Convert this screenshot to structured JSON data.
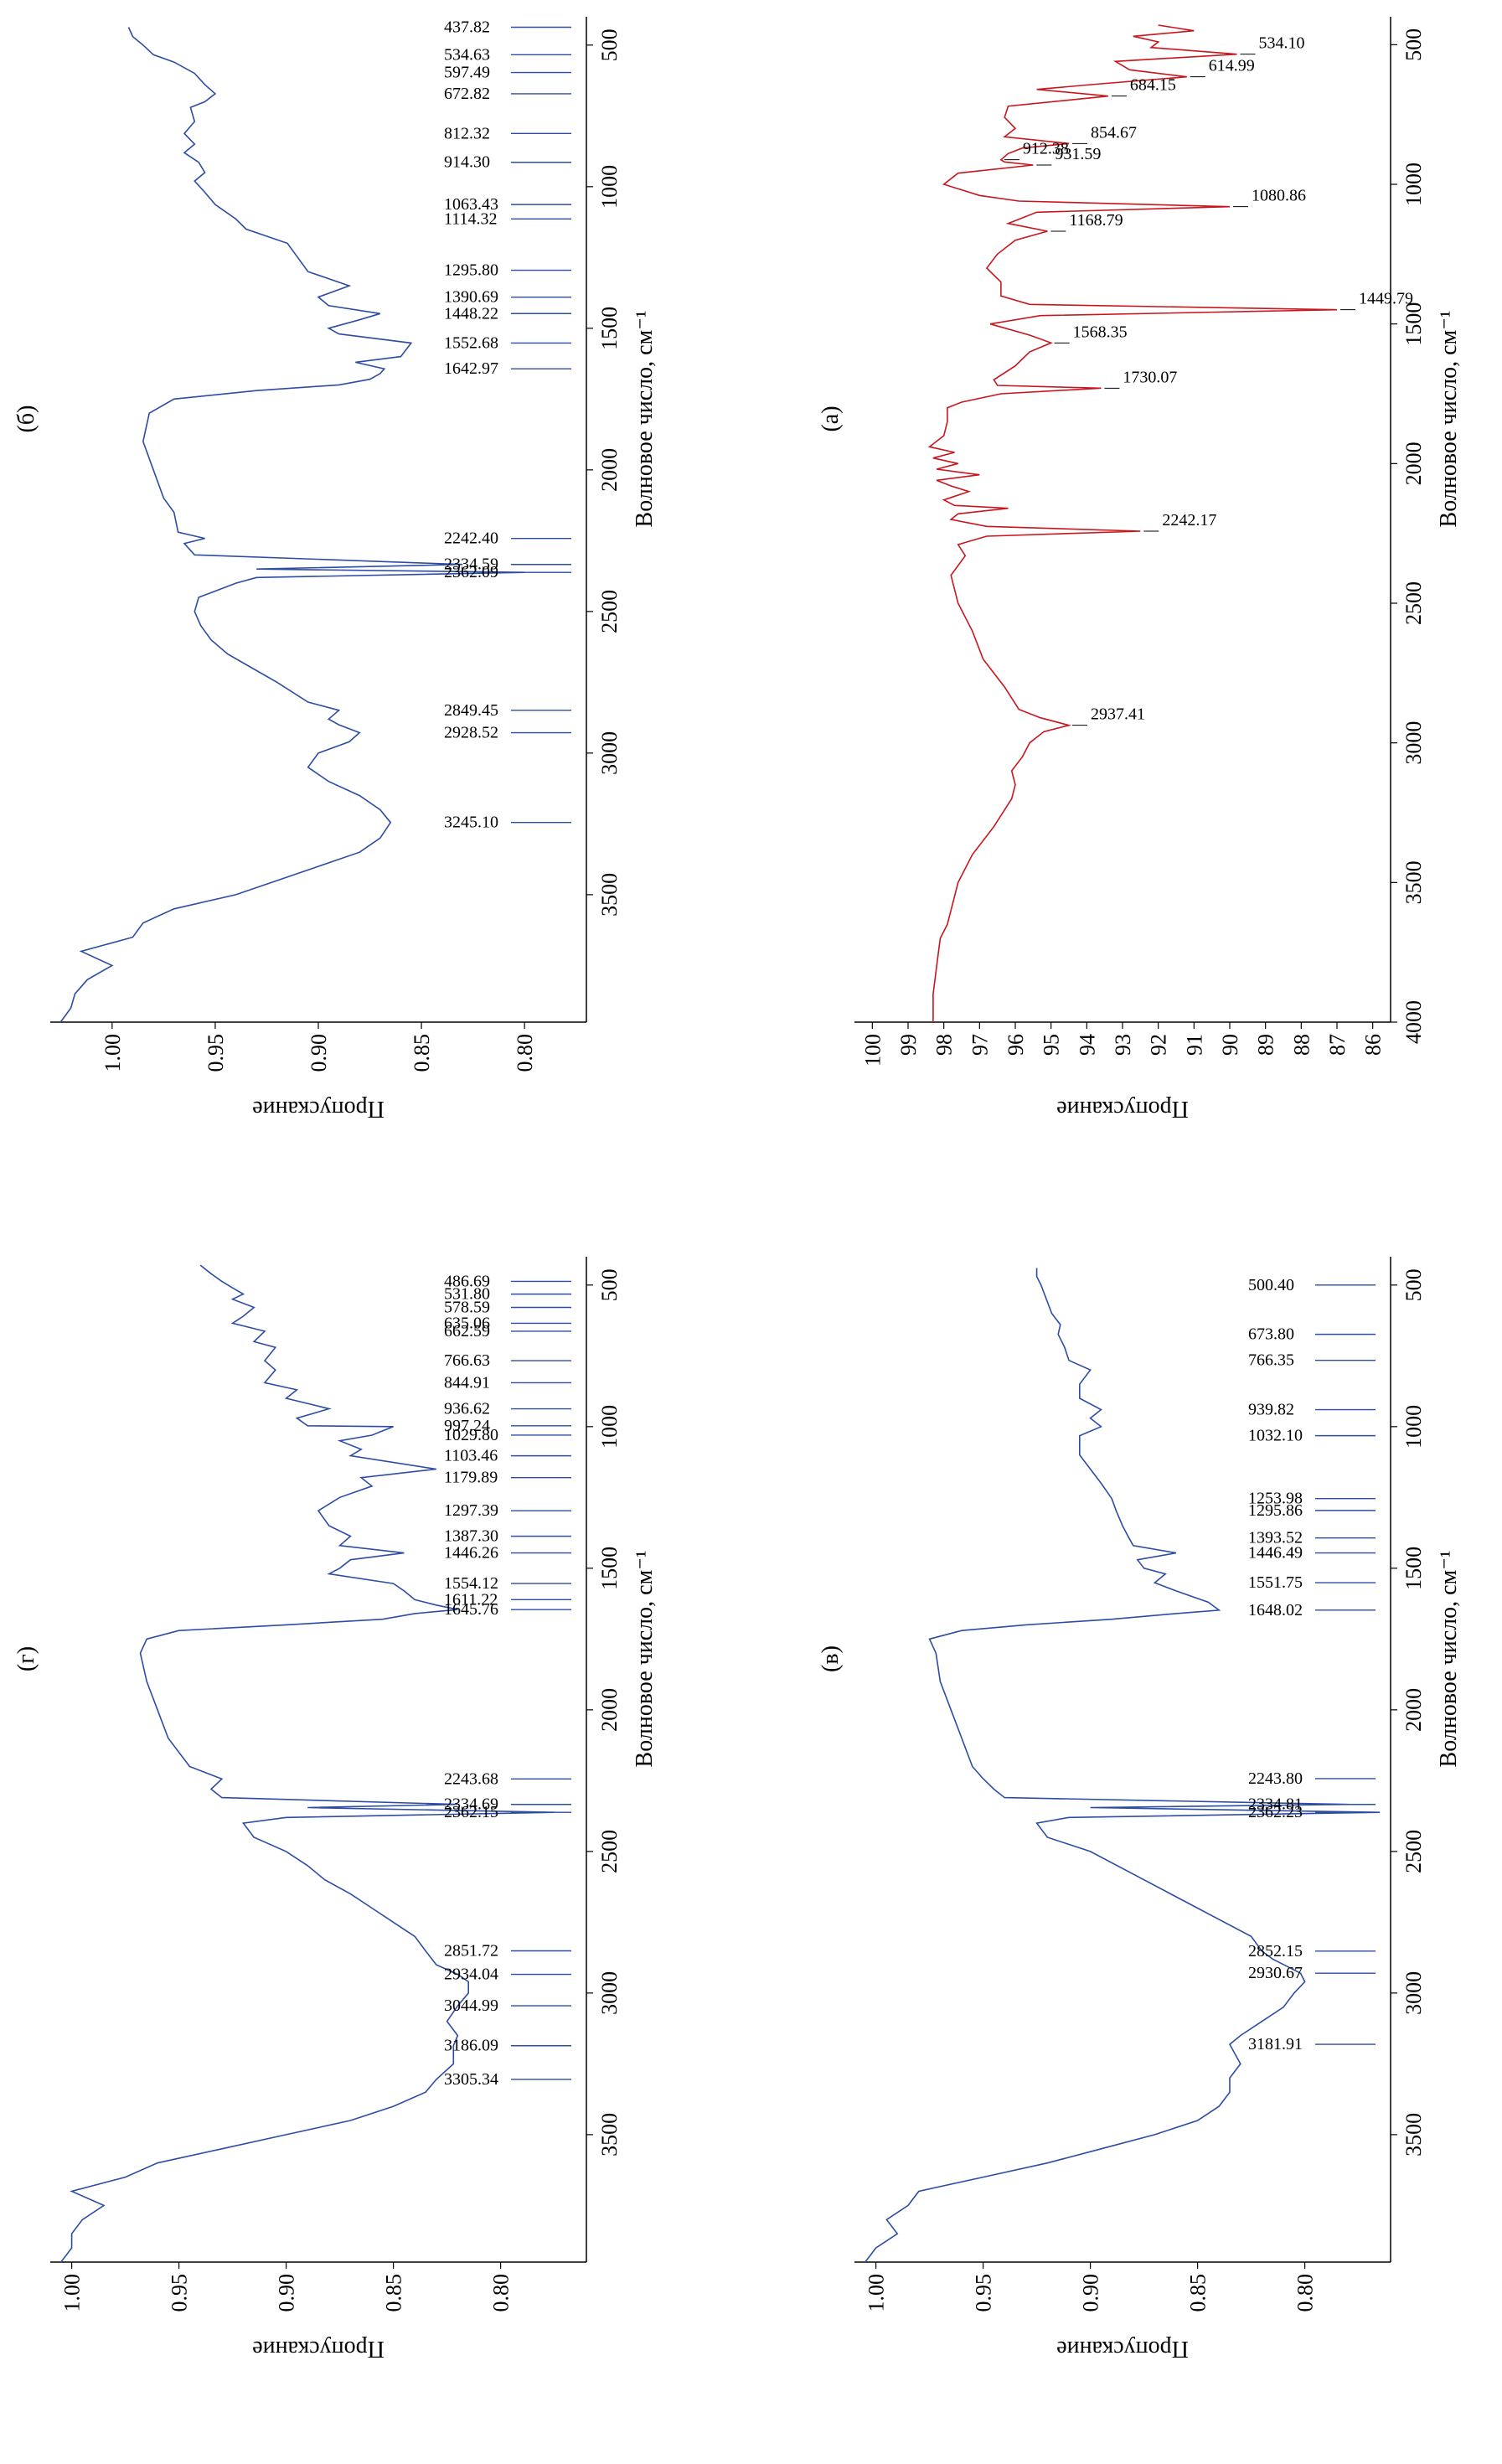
{
  "chart_data": [
    {
      "id": "a",
      "type": "line",
      "panel_label": "(а)",
      "xlabel": "Волновое число, см⁻¹",
      "ylabel": "Пропускание",
      "xlim": [
        4000,
        400
      ],
      "ylim": [
        85.5,
        100.5
      ],
      "x_ticks": [
        4000,
        3500,
        3000,
        2500,
        2000,
        1500,
        1000,
        500
      ],
      "y_ticks": [
        86,
        87,
        88,
        89,
        90,
        91,
        92,
        93,
        94,
        95,
        96,
        97,
        98,
        99,
        100
      ],
      "y_tick_labels": [
        "86",
        "87",
        "88",
        "89",
        "90",
        "91",
        "92",
        "93",
        "94",
        "95",
        "96",
        "97",
        "98",
        "99",
        "100"
      ],
      "color": "#c8161d",
      "x": [
        4000,
        3900,
        3800,
        3700,
        3650,
        3600,
        3500,
        3400,
        3300,
        3200,
        3150,
        3100,
        3050,
        3000,
        2960,
        2937,
        2910,
        2880,
        2800,
        2700,
        2600,
        2500,
        2400,
        2330,
        2290,
        2260,
        2242,
        2225,
        2200,
        2180,
        2160,
        2150,
        2130,
        2100,
        2080,
        2060,
        2040,
        2020,
        2000,
        1980,
        1960,
        1940,
        1900,
        1850,
        1800,
        1780,
        1750,
        1730,
        1720,
        1700,
        1650,
        1600,
        1568,
        1540,
        1500,
        1470,
        1449,
        1430,
        1400,
        1350,
        1300,
        1250,
        1200,
        1168,
        1140,
        1100,
        1080,
        1060,
        1040,
        1000,
        960,
        931,
        920,
        912,
        890,
        870,
        854,
        830,
        800,
        760,
        720,
        684,
        660,
        640,
        615,
        590,
        560,
        534,
        510,
        490,
        470,
        450,
        430
      ],
      "y": [
        98.3,
        98.3,
        98.2,
        98.1,
        97.9,
        97.8,
        97.6,
        97.2,
        96.6,
        96.1,
        96.0,
        96.1,
        95.8,
        95.6,
        95.2,
        94.5,
        95.3,
        95.9,
        96.3,
        96.9,
        97.2,
        97.6,
        97.8,
        97.4,
        97.6,
        96.8,
        92.5,
        96.8,
        97.8,
        97.6,
        96.2,
        97.7,
        98.0,
        97.3,
        97.8,
        98.2,
        97.0,
        98.2,
        97.6,
        98.3,
        97.7,
        98.4,
        98.0,
        97.9,
        97.9,
        97.5,
        96.4,
        93.6,
        96.5,
        96.6,
        96.0,
        95.6,
        95.0,
        95.6,
        96.7,
        95.3,
        87.0,
        95.6,
        96.4,
        96.4,
        96.8,
        96.5,
        96.0,
        95.1,
        96.2,
        95.4,
        90.0,
        95.9,
        97.0,
        98.0,
        97.6,
        95.5,
        96.3,
        96.4,
        96.2,
        95.8,
        94.5,
        96.3,
        96.0,
        96.3,
        96.2,
        93.4,
        95.4,
        93.6,
        91.2,
        92.8,
        93.2,
        89.8,
        92.2,
        92.0,
        92.7,
        91.0,
        92.0
      ],
      "peaks": [
        {
          "x": 2937,
          "label": "2937.41"
        },
        {
          "x": 2242,
          "label": "2242.17"
        },
        {
          "x": 1730,
          "label": "1730.07"
        },
        {
          "x": 1568,
          "label": "1568.35"
        },
        {
          "x": 1449,
          "label": "1449.79"
        },
        {
          "x": 1168,
          "label": "1168.79"
        },
        {
          "x": 1080,
          "label": "1080.86"
        },
        {
          "x": 931,
          "label": "931.59"
        },
        {
          "x": 912,
          "label": "912.38"
        },
        {
          "x": 854,
          "label": "854.67"
        },
        {
          "x": 684,
          "label": "684.15"
        },
        {
          "x": 615,
          "label": "614.99"
        },
        {
          "x": 534,
          "label": "534.10"
        }
      ]
    },
    {
      "id": "b",
      "type": "line",
      "panel_label": "(б)",
      "xlabel": "Волновое число, см⁻¹",
      "ylabel": "Пропускание",
      "xlim": [
        3950,
        400
      ],
      "ylim": [
        0.77,
        1.03
      ],
      "x_ticks": [
        3500,
        3000,
        2500,
        2000,
        1500,
        1000,
        500
      ],
      "y_ticks": [
        0.8,
        0.85,
        0.9,
        0.95,
        1.0
      ],
      "y_tick_labels": [
        "0.80",
        "0.85",
        "0.90",
        "0.95",
        "1.00"
      ],
      "color": "#2d4ca4",
      "x": [
        3950,
        3900,
        3850,
        3800,
        3750,
        3700,
        3650,
        3600,
        3550,
        3500,
        3450,
        3400,
        3350,
        3300,
        3245,
        3200,
        3150,
        3100,
        3050,
        3000,
        2960,
        2928,
        2900,
        2880,
        2849,
        2820,
        2750,
        2700,
        2650,
        2600,
        2550,
        2500,
        2450,
        2400,
        2380,
        2362,
        2350,
        2334,
        2300,
        2260,
        2242,
        2220,
        2150,
        2100,
        2000,
        1900,
        1800,
        1750,
        1720,
        1700,
        1680,
        1660,
        1643,
        1620,
        1600,
        1552,
        1520,
        1500,
        1470,
        1448,
        1420,
        1390,
        1350,
        1300,
        1250,
        1200,
        1150,
        1114,
        1063,
        1020,
        980,
        950,
        914,
        880,
        850,
        812,
        770,
        720,
        700,
        672,
        640,
        600,
        560,
        534,
        500,
        470,
        437
      ],
      "y": [
        1.025,
        1.02,
        1.018,
        1.012,
        1.0,
        1.015,
        0.99,
        0.985,
        0.97,
        0.94,
        0.92,
        0.9,
        0.88,
        0.87,
        0.865,
        0.87,
        0.88,
        0.895,
        0.905,
        0.9,
        0.885,
        0.88,
        0.89,
        0.895,
        0.89,
        0.905,
        0.92,
        0.932,
        0.944,
        0.952,
        0.957,
        0.96,
        0.958,
        0.94,
        0.93,
        0.8,
        0.93,
        0.83,
        0.96,
        0.965,
        0.955,
        0.968,
        0.97,
        0.975,
        0.98,
        0.985,
        0.982,
        0.97,
        0.93,
        0.89,
        0.875,
        0.87,
        0.868,
        0.882,
        0.86,
        0.855,
        0.89,
        0.895,
        0.88,
        0.87,
        0.895,
        0.9,
        0.885,
        0.905,
        0.91,
        0.915,
        0.935,
        0.94,
        0.95,
        0.955,
        0.96,
        0.955,
        0.958,
        0.965,
        0.96,
        0.965,
        0.96,
        0.962,
        0.955,
        0.95,
        0.955,
        0.96,
        0.97,
        0.98,
        0.985,
        0.99,
        0.992
      ],
      "peaks": [
        {
          "x": 3245,
          "label": "3245.10"
        },
        {
          "x": 2928,
          "label": "2928.52"
        },
        {
          "x": 2849,
          "label": "2849.45"
        },
        {
          "x": 2362,
          "label": "2362.09"
        },
        {
          "x": 2334,
          "label": "2334.59"
        },
        {
          "x": 2242,
          "label": "2242.40"
        },
        {
          "x": 1643,
          "label": "1642.97"
        },
        {
          "x": 1552,
          "label": "1552.68"
        },
        {
          "x": 1448,
          "label": "1448.22"
        },
        {
          "x": 1390,
          "label": "1390.69"
        },
        {
          "x": 1295,
          "label": "1295.80"
        },
        {
          "x": 1114,
          "label": "1114.32"
        },
        {
          "x": 1063,
          "label": "1063.43"
        },
        {
          "x": 914,
          "label": "914.30"
        },
        {
          "x": 812,
          "label": "812.32"
        },
        {
          "x": 672,
          "label": "672.82"
        },
        {
          "x": 597,
          "label": "597.49"
        },
        {
          "x": 534,
          "label": "534.63"
        },
        {
          "x": 437,
          "label": "437.82"
        }
      ]
    },
    {
      "id": "v",
      "type": "line",
      "panel_label": "(в)",
      "xlabel": "Волновое число, см⁻¹",
      "ylabel": "Пропускание",
      "xlim": [
        3950,
        400
      ],
      "ylim": [
        0.76,
        1.01
      ],
      "x_ticks": [
        3500,
        3000,
        2500,
        2000,
        1500,
        1000,
        500
      ],
      "y_ticks": [
        0.8,
        0.85,
        0.9,
        0.95,
        1.0
      ],
      "y_tick_labels": [
        "0.80",
        "0.85",
        "0.90",
        "0.95",
        "1.00"
      ],
      "color": "#2d4ca4",
      "x": [
        3950,
        3900,
        3850,
        3800,
        3750,
        3700,
        3650,
        3600,
        3550,
        3500,
        3450,
        3400,
        3350,
        3300,
        3250,
        3181,
        3150,
        3100,
        3050,
        3000,
        2960,
        2930,
        2880,
        2852,
        2800,
        2700,
        2600,
        2500,
        2450,
        2400,
        2380,
        2362,
        2345,
        2334,
        2310,
        2280,
        2243,
        2200,
        2100,
        2000,
        1900,
        1800,
        1750,
        1720,
        1700,
        1680,
        1660,
        1648,
        1620,
        1580,
        1551,
        1520,
        1500,
        1470,
        1446,
        1420,
        1393,
        1350,
        1296,
        1254,
        1200,
        1150,
        1100,
        1032,
        1000,
        970,
        940,
        900,
        850,
        800,
        766,
        720,
        674,
        640,
        600,
        560,
        500,
        470,
        440
      ],
      "y": [
        1.005,
        1.0,
        0.99,
        0.995,
        0.985,
        0.98,
        0.95,
        0.92,
        0.895,
        0.87,
        0.85,
        0.84,
        0.835,
        0.835,
        0.83,
        0.835,
        0.83,
        0.82,
        0.81,
        0.805,
        0.8,
        0.802,
        0.815,
        0.82,
        0.825,
        0.85,
        0.875,
        0.9,
        0.92,
        0.925,
        0.91,
        0.765,
        0.9,
        0.78,
        0.94,
        0.945,
        0.95,
        0.955,
        0.96,
        0.965,
        0.97,
        0.972,
        0.975,
        0.96,
        0.93,
        0.89,
        0.86,
        0.84,
        0.845,
        0.86,
        0.87,
        0.865,
        0.875,
        0.878,
        0.86,
        0.88,
        0.882,
        0.885,
        0.888,
        0.89,
        0.895,
        0.9,
        0.905,
        0.905,
        0.895,
        0.9,
        0.895,
        0.905,
        0.905,
        0.9,
        0.91,
        0.912,
        0.915,
        0.914,
        0.918,
        0.92,
        0.923,
        0.925,
        0.925
      ],
      "peaks": [
        {
          "x": 3181,
          "label": "3181.91"
        },
        {
          "x": 2930,
          "label": "2930.67"
        },
        {
          "x": 2852,
          "label": "2852.15"
        },
        {
          "x": 2362,
          "label": "2362.23"
        },
        {
          "x": 2334,
          "label": "2334.81"
        },
        {
          "x": 2243,
          "label": "2243.80"
        },
        {
          "x": 1648,
          "label": "1648.02"
        },
        {
          "x": 1551,
          "label": "1551.75"
        },
        {
          "x": 1446,
          "label": "1446.49"
        },
        {
          "x": 1393,
          "label": "1393.52"
        },
        {
          "x": 1296,
          "label": "1295.86"
        },
        {
          "x": 1254,
          "label": "1253.98"
        },
        {
          "x": 1032,
          "label": "1032.10"
        },
        {
          "x": 940,
          "label": "939.82"
        },
        {
          "x": 766,
          "label": "766.35"
        },
        {
          "x": 674,
          "label": "673.80"
        },
        {
          "x": 500,
          "label": "500.40"
        }
      ]
    },
    {
      "id": "g",
      "type": "line",
      "panel_label": "(г)",
      "xlabel": "Волновое число, см⁻¹",
      "ylabel": "Пропускание",
      "xlim": [
        3950,
        400
      ],
      "ylim": [
        0.76,
        1.01
      ],
      "x_ticks": [
        3500,
        3000,
        2500,
        2000,
        1500,
        1000,
        500
      ],
      "y_ticks": [
        0.8,
        0.85,
        0.9,
        0.95,
        1.0
      ],
      "y_tick_labels": [
        "0.80",
        "0.85",
        "0.90",
        "0.95",
        "1.00"
      ],
      "color": "#2d4ca4",
      "x": [
        3950,
        3900,
        3850,
        3800,
        3750,
        3700,
        3650,
        3600,
        3550,
        3500,
        3450,
        3400,
        3350,
        3305,
        3250,
        3186,
        3150,
        3100,
        3045,
        3000,
        2960,
        2934,
        2900,
        2851,
        2800,
        2750,
        2700,
        2650,
        2600,
        2550,
        2500,
        2450,
        2400,
        2380,
        2362,
        2345,
        2334,
        2310,
        2280,
        2244,
        2200,
        2100,
        2000,
        1900,
        1800,
        1750,
        1720,
        1700,
        1680,
        1660,
        1646,
        1630,
        1611,
        1580,
        1554,
        1520,
        1500,
        1470,
        1446,
        1420,
        1387,
        1350,
        1297,
        1250,
        1210,
        1180,
        1150,
        1103,
        1080,
        1050,
        1030,
        1000,
        997,
        970,
        937,
        900,
        870,
        845,
        800,
        767,
        720,
        700,
        663,
        635,
        610,
        579,
        550,
        532,
        510,
        487,
        460,
        430
      ],
      "y": [
        1.005,
        1.0,
        1.0,
        0.995,
        0.985,
        1.0,
        0.975,
        0.96,
        0.93,
        0.9,
        0.87,
        0.85,
        0.835,
        0.83,
        0.822,
        0.822,
        0.82,
        0.825,
        0.82,
        0.815,
        0.815,
        0.82,
        0.83,
        0.835,
        0.84,
        0.85,
        0.86,
        0.87,
        0.882,
        0.89,
        0.9,
        0.915,
        0.92,
        0.9,
        0.775,
        0.89,
        0.82,
        0.93,
        0.935,
        0.93,
        0.945,
        0.955,
        0.96,
        0.965,
        0.968,
        0.965,
        0.95,
        0.9,
        0.855,
        0.84,
        0.82,
        0.83,
        0.84,
        0.845,
        0.85,
        0.88,
        0.875,
        0.87,
        0.845,
        0.875,
        0.87,
        0.88,
        0.885,
        0.875,
        0.86,
        0.865,
        0.83,
        0.87,
        0.865,
        0.875,
        0.86,
        0.85,
        0.89,
        0.895,
        0.88,
        0.9,
        0.895,
        0.91,
        0.905,
        0.91,
        0.905,
        0.915,
        0.91,
        0.925,
        0.92,
        0.915,
        0.925,
        0.92,
        0.925,
        0.93,
        0.935,
        0.94
      ],
      "peaks": [
        {
          "x": 3305,
          "label": "3305.34"
        },
        {
          "x": 3186,
          "label": "3186.09"
        },
        {
          "x": 3045,
          "label": "3044.99"
        },
        {
          "x": 2934,
          "label": "2934.04"
        },
        {
          "x": 2851,
          "label": "2851.72"
        },
        {
          "x": 2362,
          "label": "2362.15"
        },
        {
          "x": 2334,
          "label": "2334.69"
        },
        {
          "x": 2244,
          "label": "2243.68"
        },
        {
          "x": 1646,
          "label": "1645.76"
        },
        {
          "x": 1611,
          "label": "1611.22"
        },
        {
          "x": 1554,
          "label": "1554.12"
        },
        {
          "x": 1446,
          "label": "1446.26"
        },
        {
          "x": 1387,
          "label": "1387.30"
        },
        {
          "x": 1297,
          "label": "1297.39"
        },
        {
          "x": 1180,
          "label": "1179.89"
        },
        {
          "x": 1103,
          "label": "1103.46"
        },
        {
          "x": 1030,
          "label": "1029.80"
        },
        {
          "x": 997,
          "label": "997.24"
        },
        {
          "x": 937,
          "label": "936.62"
        },
        {
          "x": 845,
          "label": "844.91"
        },
        {
          "x": 767,
          "label": "766.63"
        },
        {
          "x": 663,
          "label": "662.59"
        },
        {
          "x": 635,
          "label": "635.06"
        },
        {
          "x": 579,
          "label": "578.59"
        },
        {
          "x": 532,
          "label": "531.80"
        },
        {
          "x": 487,
          "label": "486.69"
        }
      ]
    }
  ]
}
